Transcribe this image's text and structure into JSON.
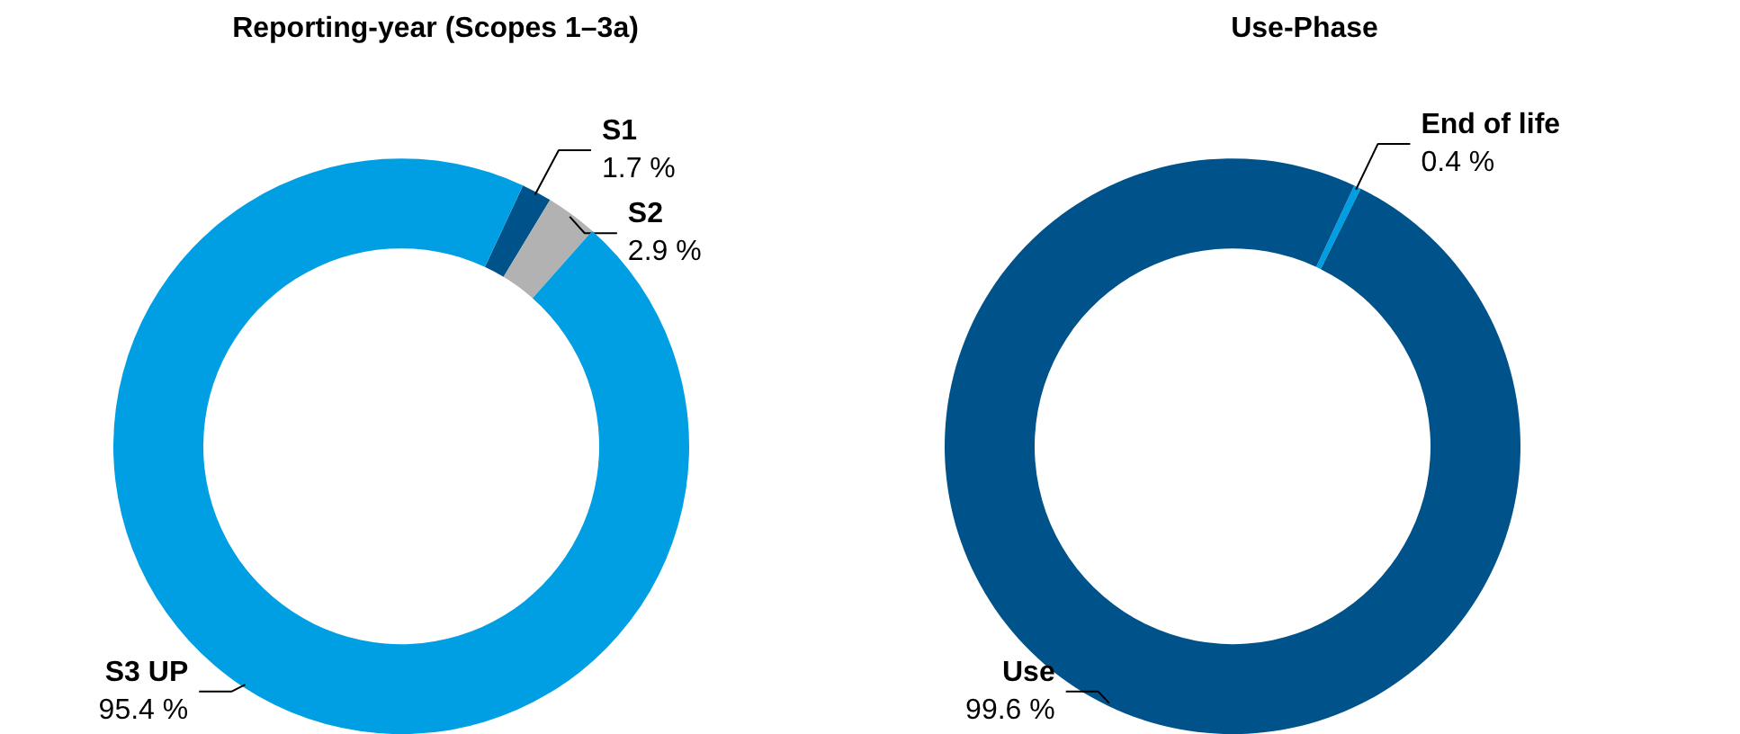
{
  "chart_data": [
    {
      "type": "donut",
      "title": "Reporting-year (Scopes 1–3a)",
      "categories": [
        "S1",
        "S2",
        "S3 UP"
      ],
      "values": [
        1.7,
        2.9,
        95.4
      ],
      "colors": [
        "#00538a",
        "#b2b2b2",
        "#009fe3"
      ],
      "value_labels": [
        "1.7 %",
        "2.9 %",
        "95.4 %"
      ]
    },
    {
      "type": "donut",
      "title": "Use-Phase",
      "categories": [
        "End of life",
        "Use"
      ],
      "values": [
        0.4,
        99.6
      ],
      "colors": [
        "#009fe3",
        "#00538a"
      ],
      "value_labels": [
        "0.4 %",
        "99.6 %"
      ]
    }
  ]
}
